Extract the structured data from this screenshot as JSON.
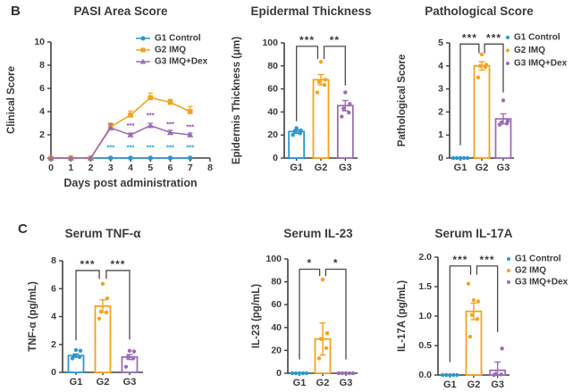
{
  "panels": {
    "b": "B",
    "c": "C"
  },
  "colors": {
    "blue": "#2B96D1",
    "orange": "#F5A21B",
    "purple": "#9C6CB4",
    "text": "#3A3A3A",
    "axis": "#3F3F3F",
    "bracket": "#4A4A4A",
    "star_purple": "#8E44AD"
  },
  "legend_items": [
    {
      "label": "G1 Control",
      "color": "blue",
      "marker": "circle"
    },
    {
      "label": "G2 IMQ",
      "color": "orange",
      "marker": "square"
    },
    {
      "label": "G3 IMQ+Dex",
      "color": "purple",
      "marker": "triangle"
    }
  ],
  "chart_data": [
    {
      "id": "pasi",
      "type": "line",
      "title": "PASI Area Score",
      "xlabel": "Days post administration",
      "ylabel": "Clinical Score",
      "xlim": [
        0,
        8
      ],
      "xticks": [
        0,
        1,
        2,
        3,
        4,
        5,
        6,
        7,
        8
      ],
      "ylim": [
        0,
        10
      ],
      "yticks": [
        0,
        2,
        4,
        6,
        8,
        10
      ],
      "x": [
        0,
        1,
        2,
        3,
        4,
        5,
        6,
        7
      ],
      "series": [
        {
          "name": "G1 Control",
          "color": "blue",
          "marker": "circle",
          "values": [
            0,
            0,
            0,
            0,
            0,
            0,
            0,
            0
          ],
          "errors": [
            0,
            0,
            0,
            0,
            0,
            0,
            0,
            0
          ]
        },
        {
          "name": "G2 IMQ",
          "color": "orange",
          "marker": "square",
          "values": [
            0,
            0,
            0,
            2.7,
            3.7,
            5.2,
            4.8,
            4.0
          ],
          "errors": [
            0,
            0,
            0,
            0.3,
            0.35,
            0.4,
            0.25,
            0.45
          ]
        },
        {
          "name": "G3 IMQ+Dex",
          "color": "purple",
          "marker": "triangle",
          "values": [
            0,
            0,
            0,
            2.6,
            2.0,
            2.8,
            2.2,
            2.0
          ],
          "errors": [
            0,
            0,
            0,
            0.35,
            0.15,
            0.2,
            0.2,
            0.15
          ]
        }
      ],
      "annotations": [
        {
          "text": "***",
          "x": 3,
          "y": 0.75,
          "color": "blue"
        },
        {
          "text": "***",
          "x": 4,
          "y": 0.75,
          "color": "blue"
        },
        {
          "text": "***",
          "x": 5,
          "y": 0.75,
          "color": "blue"
        },
        {
          "text": "***",
          "x": 6,
          "y": 0.75,
          "color": "blue"
        },
        {
          "text": "***",
          "x": 7,
          "y": 0.75,
          "color": "blue"
        },
        {
          "text": "***",
          "x": 4,
          "y": 2.6,
          "color": "star_purple"
        },
        {
          "text": "***",
          "x": 5,
          "y": 3.5,
          "color": "star_purple"
        },
        {
          "text": "***",
          "x": 6,
          "y": 2.75,
          "color": "star_purple"
        },
        {
          "text": "***",
          "x": 7,
          "y": 2.5,
          "color": "star_purple"
        }
      ],
      "legend_position": "top-right"
    },
    {
      "id": "epidermal",
      "type": "bar",
      "title": "Epidermal Thickness",
      "ylabel": "Epidermis Thickness (μm)",
      "categories": [
        "G1",
        "G2",
        "G3"
      ],
      "values": [
        23,
        68,
        45.5
      ],
      "errors": [
        1.5,
        4.5,
        4.5
      ],
      "colors": [
        "blue",
        "orange",
        "purple"
      ],
      "ylim": [
        0,
        100
      ],
      "yticks": [
        0,
        20,
        40,
        60,
        80,
        100
      ],
      "points": [
        [
          20,
          21.5,
          23,
          24,
          26
        ],
        [
          57,
          63.5,
          66,
          68,
          83.5
        ],
        [
          36,
          39.5,
          43,
          47,
          57
        ]
      ],
      "sig_brackets": [
        {
          "a": 0,
          "b": 1,
          "top": 97,
          "da": 32,
          "db": 86,
          "xbOff": -0.13,
          "label": "***"
        },
        {
          "a": 1,
          "b": 2,
          "top": 97,
          "da": 86,
          "db": 63,
          "xaOff": 0.13,
          "label": "**"
        }
      ]
    },
    {
      "id": "patho",
      "type": "bar",
      "title": "Pathological Score",
      "ylabel": "Pathological Score",
      "categories": [
        "G1",
        "G2",
        "G3"
      ],
      "values": [
        0,
        4.0,
        1.7
      ],
      "errors": [
        0,
        0.18,
        0.22
      ],
      "colors": [
        "blue",
        "orange",
        "purple"
      ],
      "ylim": [
        0,
        5
      ],
      "yticks": [
        0,
        1,
        2,
        3,
        4,
        5
      ],
      "points": [
        [
          0,
          0,
          0,
          0,
          0
        ],
        [
          3.5,
          3.95,
          4.0,
          4.05,
          4.5
        ],
        [
          1.45,
          1.5,
          1.55,
          1.6,
          2.5
        ]
      ],
      "sig_brackets": [
        {
          "a": 0,
          "b": 1,
          "top": 4.95,
          "da": 0.55,
          "db": 4.55,
          "xbOff": -0.13,
          "label": "***"
        },
        {
          "a": 1,
          "b": 2,
          "top": 4.95,
          "da": 4.55,
          "db": 2.85,
          "xaOff": 0.13,
          "label": "***"
        }
      ],
      "legend_position": "right"
    },
    {
      "id": "tnf",
      "type": "bar",
      "title": "Serum TNF-α",
      "ylabel": "TNF-α (pg/mL)",
      "categories": [
        "G1",
        "G2",
        "G3"
      ],
      "values": [
        1.2,
        4.75,
        1.1
      ],
      "errors": [
        0.12,
        0.45,
        0.18
      ],
      "colors": [
        "blue",
        "orange",
        "purple"
      ],
      "ylim": [
        0,
        8
      ],
      "yticks": [
        0,
        2,
        4,
        6,
        8
      ],
      "points": [
        [
          1.0,
          1.1,
          1.2,
          1.55,
          1.6
        ],
        [
          3.85,
          4.3,
          4.35,
          5.3,
          6.35
        ],
        [
          0.4,
          1.0,
          1.1,
          1.5,
          1.55
        ]
      ],
      "sig_brackets": [
        {
          "a": 0,
          "b": 1,
          "top": 7.3,
          "da": 2.3,
          "db": 6.7,
          "xbOff": -0.13,
          "label": "***"
        },
        {
          "a": 1,
          "b": 2,
          "top": 7.3,
          "da": 6.7,
          "db": 2.35,
          "xaOff": 0.13,
          "label": "***"
        }
      ]
    },
    {
      "id": "il23",
      "type": "bar",
      "title": "Serum IL-23",
      "ylabel": "IL-23 (pg/mL)",
      "categories": [
        "G1",
        "G2",
        "G3"
      ],
      "values": [
        0,
        30,
        0
      ],
      "errors": [
        0,
        14,
        0
      ],
      "colors": [
        "blue",
        "orange",
        "purple"
      ],
      "ylim": [
        0,
        100
      ],
      "yticks": [
        0,
        20,
        40,
        60,
        80,
        100
      ],
      "points": [
        [
          0,
          0,
          0,
          0,
          0
        ],
        [
          13,
          22,
          30,
          35,
          82
        ],
        [
          0,
          0,
          0,
          0,
          0
        ]
      ],
      "sig_brackets": [
        {
          "a": 0,
          "b": 1,
          "top": 91,
          "da": 12,
          "db": 85,
          "xbOff": -0.13,
          "label": "*"
        },
        {
          "a": 1,
          "b": 2,
          "top": 91,
          "da": 85,
          "db": 12,
          "xaOff": 0.13,
          "label": "*"
        }
      ]
    },
    {
      "id": "il17",
      "type": "bar",
      "title": "Serum IL-17A",
      "ylabel": "IL-17A (pg/mL)",
      "categories": [
        "G1",
        "G2",
        "G3"
      ],
      "values": [
        0,
        1.08,
        0.08
      ],
      "errors": [
        0,
        0.14,
        0.14
      ],
      "colors": [
        "blue",
        "orange",
        "purple"
      ],
      "ylim": [
        0,
        2
      ],
      "yticks": [
        0,
        0.5,
        1,
        1.5,
        2
      ],
      "ytick_labels": [
        "0.0",
        "0.5",
        "1.0",
        "1.5",
        "2.0"
      ],
      "points": [
        [
          0,
          0,
          0,
          0,
          0
        ],
        [
          0.65,
          0.95,
          1.02,
          1.25,
          1.27,
          1.55
        ],
        [
          0,
          0.01,
          0.02,
          0.45
        ]
      ],
      "sig_brackets": [
        {
          "a": 0,
          "b": 1,
          "top": 1.85,
          "da": 0.22,
          "db": 1.7,
          "xbOff": -0.13,
          "label": "***"
        },
        {
          "a": 1,
          "b": 2,
          "top": 1.85,
          "da": 1.7,
          "db": 0.73,
          "xaOff": 0.13,
          "label": "***"
        }
      ],
      "legend_position": "right"
    }
  ]
}
